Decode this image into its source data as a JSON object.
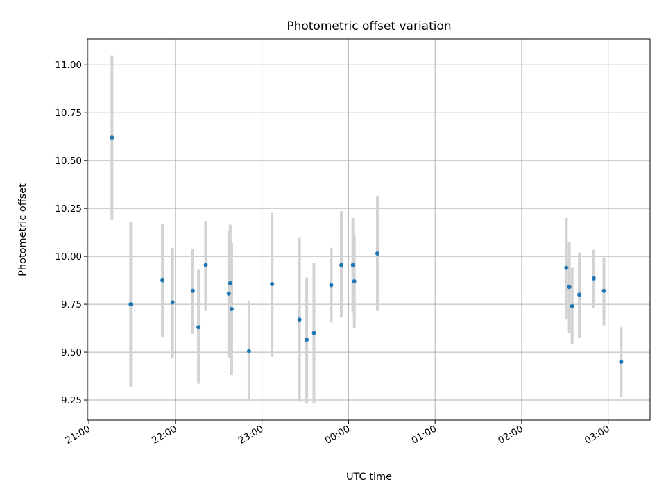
{
  "chart_data": {
    "type": "scatter",
    "title": "Photometric offset variation",
    "xlabel": "UTC time",
    "ylabel": "Photometric offset",
    "xlim": [
      "20:59",
      "03:29"
    ],
    "ylim": [
      9.145,
      11.135
    ],
    "x_ticks": [
      "21:00",
      "22:00",
      "23:00",
      "00:00",
      "01:00",
      "02:00",
      "03:00"
    ],
    "y_ticks": [
      "9.25",
      "9.50",
      "9.75",
      "10.00",
      "10.25",
      "10.50",
      "10.75",
      "11.00"
    ],
    "grid": true,
    "colors": {
      "point": "#1f77b4",
      "errorbar": "#d3d3d3",
      "grid": "#b0b0b0"
    },
    "points": [
      {
        "x": "21:16",
        "y": 10.62,
        "ylow": 10.19,
        "yhigh": 11.05
      },
      {
        "x": "21:29",
        "y": 9.75,
        "ylow": 9.32,
        "yhigh": 10.18
      },
      {
        "x": "21:51",
        "y": 9.875,
        "ylow": 9.58,
        "yhigh": 10.17
      },
      {
        "x": "21:58",
        "y": 9.76,
        "ylow": 9.47,
        "yhigh": 10.045
      },
      {
        "x": "22:12",
        "y": 9.82,
        "ylow": 9.595,
        "yhigh": 10.04
      },
      {
        "x": "22:16",
        "y": 9.63,
        "ylow": 9.335,
        "yhigh": 9.93
      },
      {
        "x": "22:21",
        "y": 9.955,
        "ylow": 9.715,
        "yhigh": 10.185
      },
      {
        "x": "22:37",
        "y": 9.805,
        "ylow": 9.47,
        "yhigh": 10.135
      },
      {
        "x": "22:38",
        "y": 9.86,
        "ylow": 9.555,
        "yhigh": 10.165
      },
      {
        "x": "22:39",
        "y": 9.725,
        "ylow": 9.38,
        "yhigh": 10.07
      },
      {
        "x": "22:51",
        "y": 9.505,
        "ylow": 9.25,
        "yhigh": 9.765
      },
      {
        "x": "23:07",
        "y": 9.855,
        "ylow": 9.475,
        "yhigh": 10.23
      },
      {
        "x": "23:26",
        "y": 9.67,
        "ylow": 9.24,
        "yhigh": 10.1
      },
      {
        "x": "23:31",
        "y": 9.565,
        "ylow": 9.235,
        "yhigh": 9.89
      },
      {
        "x": "23:36",
        "y": 9.6,
        "ylow": 9.235,
        "yhigh": 9.965
      },
      {
        "x": "23:48",
        "y": 9.85,
        "ylow": 9.655,
        "yhigh": 10.045
      },
      {
        "x": "23:55",
        "y": 9.955,
        "ylow": 9.68,
        "yhigh": 10.235
      },
      {
        "x": "00:03",
        "y": 9.955,
        "ylow": 9.705,
        "yhigh": 10.2
      },
      {
        "x": "00:04",
        "y": 9.87,
        "ylow": 9.625,
        "yhigh": 10.11
      },
      {
        "x": "00:20",
        "y": 10.015,
        "ylow": 9.715,
        "yhigh": 10.315
      },
      {
        "x": "02:31",
        "y": 9.94,
        "ylow": 9.67,
        "yhigh": 10.2
      },
      {
        "x": "02:33",
        "y": 9.84,
        "ylow": 9.6,
        "yhigh": 10.075
      },
      {
        "x": "02:35",
        "y": 9.74,
        "ylow": 9.54,
        "yhigh": 9.94
      },
      {
        "x": "02:40",
        "y": 9.8,
        "ylow": 9.575,
        "yhigh": 10.02
      },
      {
        "x": "02:50",
        "y": 9.885,
        "ylow": 9.73,
        "yhigh": 10.035
      },
      {
        "x": "02:57",
        "y": 9.82,
        "ylow": 9.64,
        "yhigh": 9.995
      },
      {
        "x": "03:09",
        "y": 9.45,
        "ylow": 9.265,
        "yhigh": 9.63
      }
    ]
  }
}
